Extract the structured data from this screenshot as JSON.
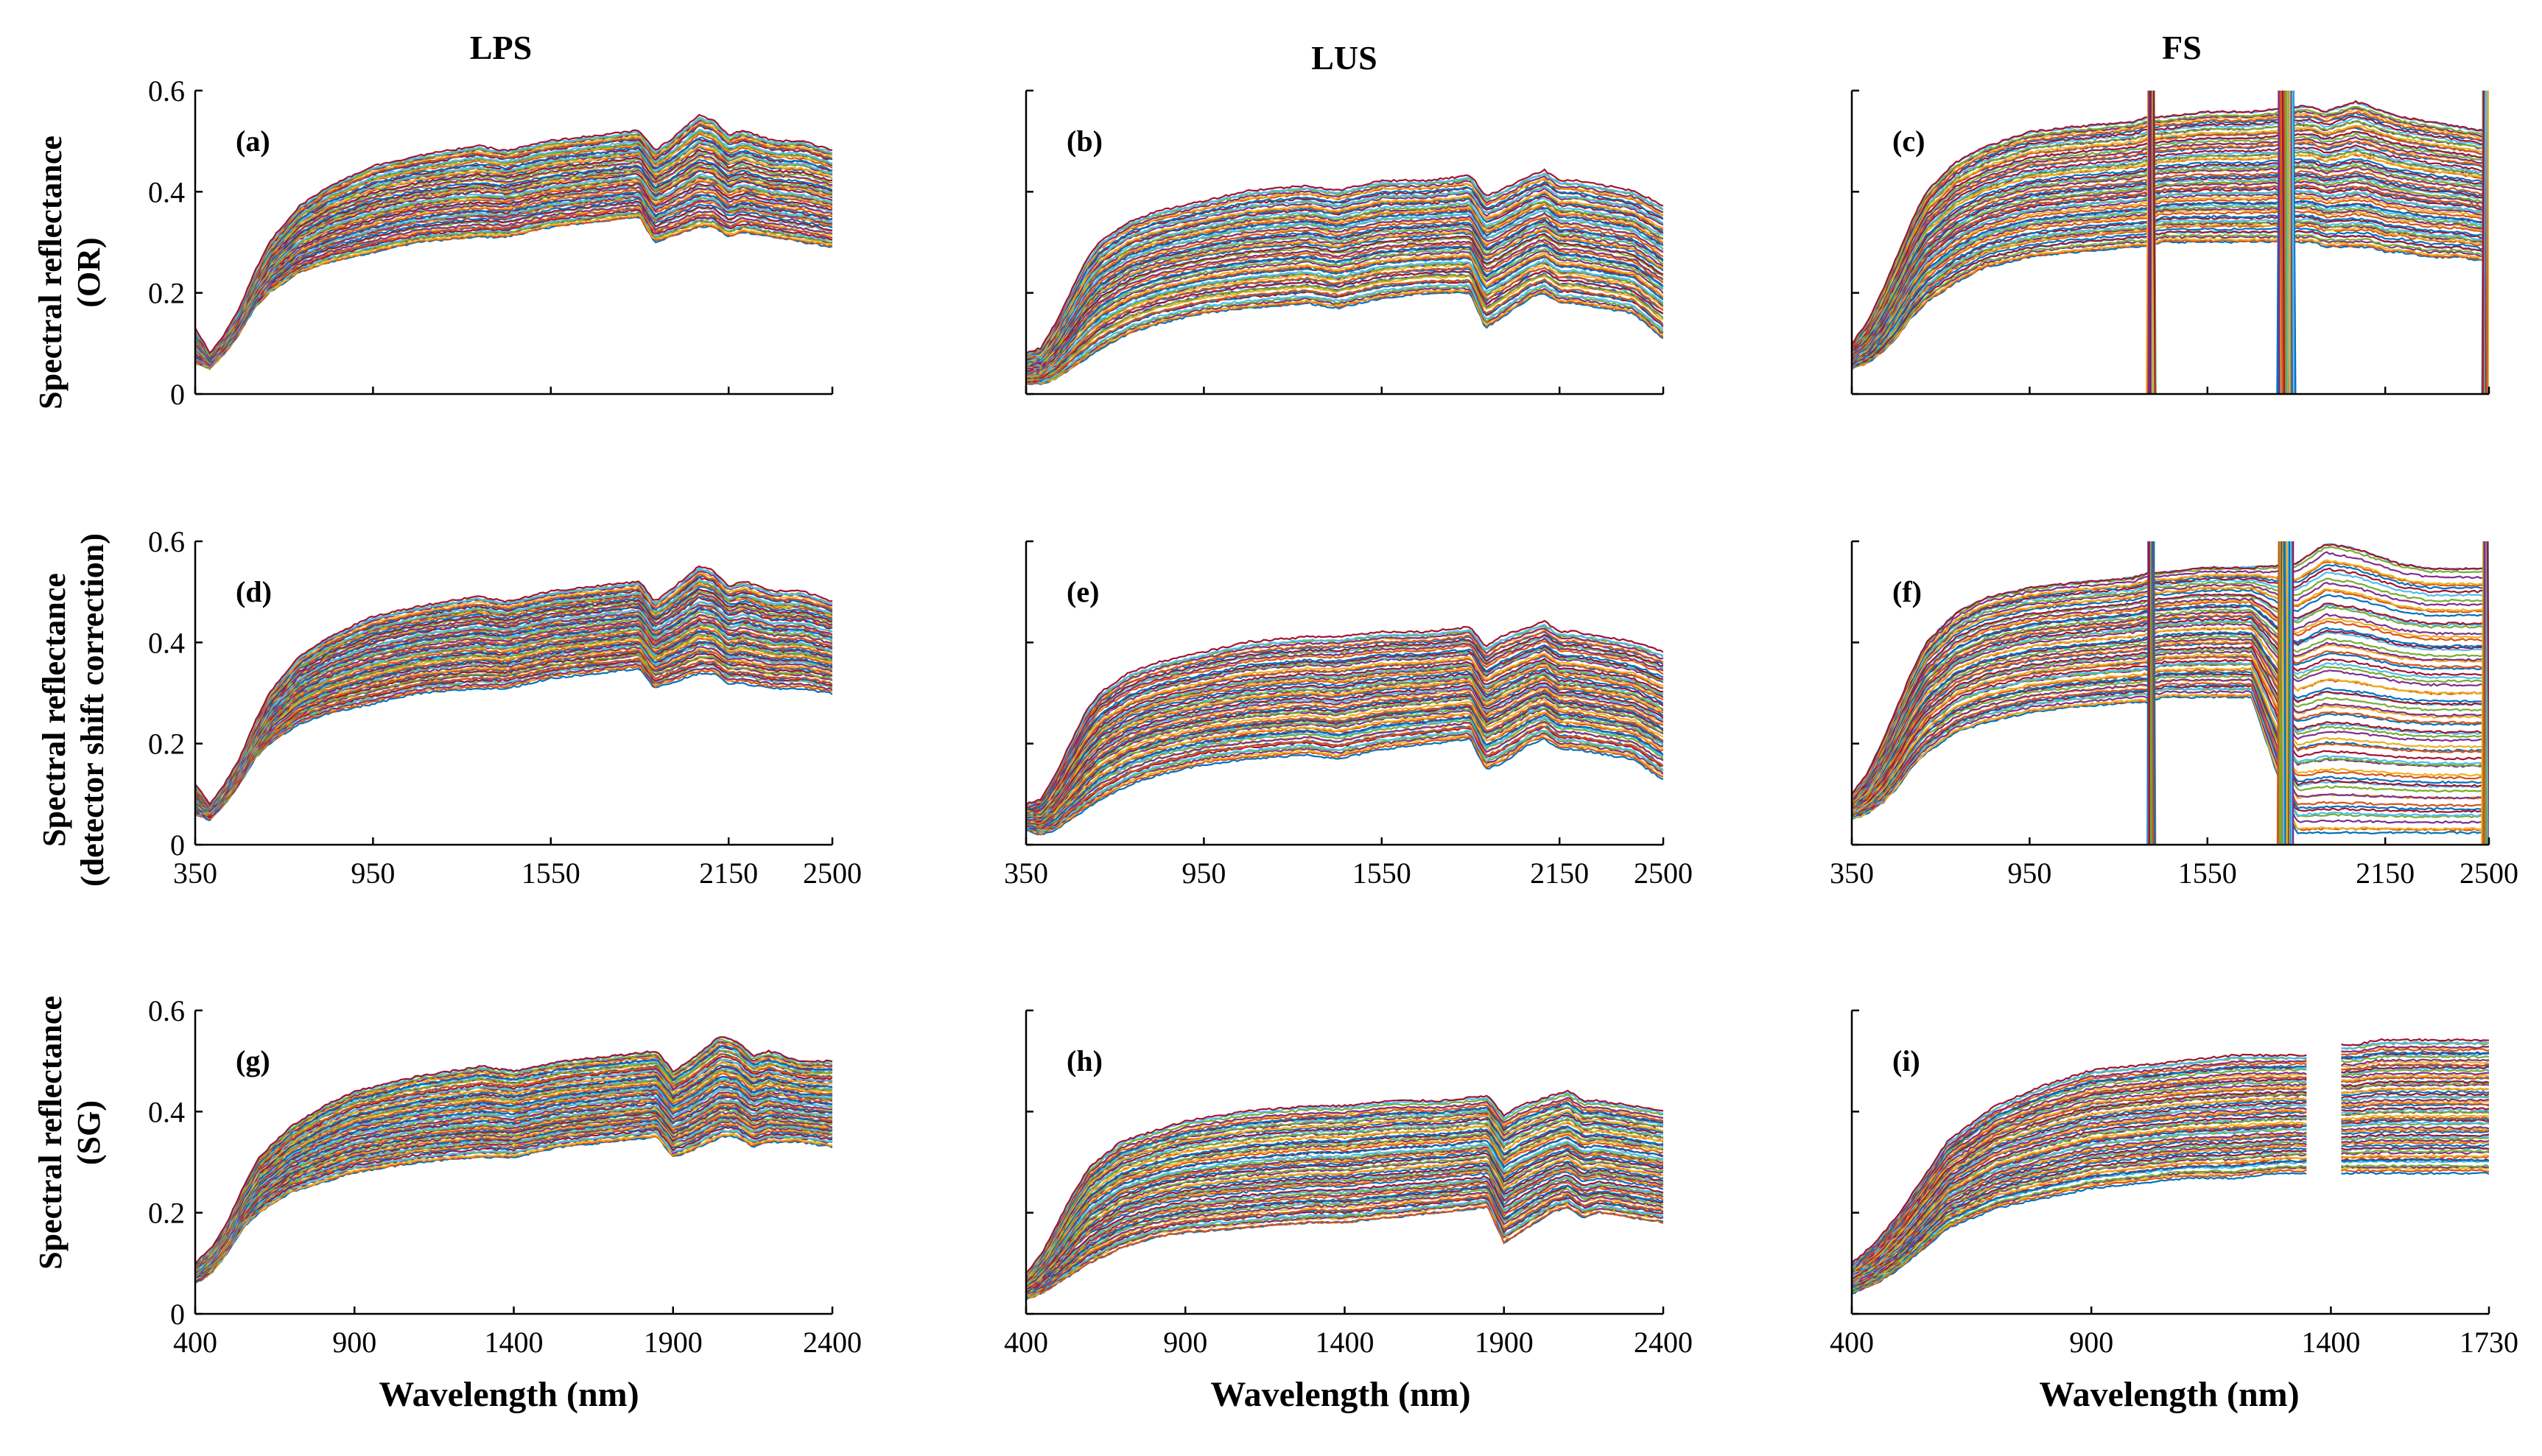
{
  "figure": {
    "columns": [
      "LPS",
      "LUS",
      "FS"
    ],
    "row_labels": [
      [
        "Spectral reflectance",
        "(OR)"
      ],
      [
        "Spectral reflectance",
        "(detector shift correction)"
      ],
      [
        "Spectral reflectance",
        "(SG)"
      ]
    ],
    "xlabel": "Wavelength (nm)"
  },
  "chart_data": [
    {
      "id": "a",
      "type": "line",
      "panel_label": "(a)",
      "xlim": [
        350,
        2500
      ],
      "ylim": [
        0,
        0.6
      ],
      "xticks": [
        350,
        950,
        1550,
        2150,
        2500
      ],
      "yticks": [
        0,
        0.2,
        0.4,
        0.6
      ],
      "show_xticklabels": false,
      "show_yticklabels": true,
      "x": [
        350,
        400,
        450,
        500,
        550,
        600,
        700,
        800,
        950,
        1100,
        1300,
        1400,
        1550,
        1700,
        1850,
        1900,
        1950,
        2050,
        2100,
        2150,
        2200,
        2300,
        2400,
        2500
      ],
      "series_min": [
        0.06,
        0.05,
        0.08,
        0.12,
        0.17,
        0.2,
        0.24,
        0.26,
        0.28,
        0.3,
        0.31,
        0.31,
        0.33,
        0.34,
        0.35,
        0.3,
        0.31,
        0.33,
        0.33,
        0.31,
        0.32,
        0.31,
        0.3,
        0.29
      ],
      "series_max": [
        0.13,
        0.08,
        0.12,
        0.17,
        0.24,
        0.3,
        0.37,
        0.41,
        0.45,
        0.47,
        0.49,
        0.48,
        0.5,
        0.51,
        0.52,
        0.48,
        0.5,
        0.55,
        0.54,
        0.51,
        0.52,
        0.5,
        0.5,
        0.48
      ],
      "noise_bands": []
    },
    {
      "id": "b",
      "type": "line",
      "panel_label": "(b)",
      "xlim": [
        350,
        2500
      ],
      "ylim": [
        0,
        0.6
      ],
      "xticks": [
        350,
        950,
        1550,
        2150,
        2500
      ],
      "yticks": [
        0,
        0.2,
        0.4,
        0.6
      ],
      "show_xticklabels": false,
      "show_yticklabels": false,
      "x": [
        350,
        400,
        450,
        500,
        550,
        600,
        700,
        800,
        950,
        1100,
        1300,
        1400,
        1550,
        1700,
        1850,
        1900,
        1950,
        2050,
        2100,
        2150,
        2200,
        2300,
        2400,
        2500
      ],
      "series_min": [
        0.02,
        0.02,
        0.03,
        0.05,
        0.07,
        0.09,
        0.12,
        0.14,
        0.16,
        0.17,
        0.18,
        0.17,
        0.19,
        0.2,
        0.2,
        0.13,
        0.15,
        0.19,
        0.2,
        0.18,
        0.18,
        0.17,
        0.16,
        0.11
      ],
      "series_max": [
        0.08,
        0.09,
        0.14,
        0.2,
        0.26,
        0.3,
        0.34,
        0.36,
        0.38,
        0.4,
        0.41,
        0.4,
        0.42,
        0.42,
        0.43,
        0.39,
        0.4,
        0.43,
        0.44,
        0.42,
        0.42,
        0.41,
        0.4,
        0.37
      ],
      "noise_bands": []
    },
    {
      "id": "c",
      "type": "line",
      "panel_label": "(c)",
      "xlim": [
        350,
        2500
      ],
      "ylim": [
        0,
        0.6
      ],
      "xticks": [
        350,
        950,
        1550,
        2150,
        2500
      ],
      "yticks": [
        0,
        0.2,
        0.4,
        0.6
      ],
      "show_xticklabels": false,
      "show_yticklabels": false,
      "x": [
        350,
        400,
        450,
        500,
        550,
        600,
        700,
        800,
        950,
        1100,
        1300,
        1350,
        1400,
        1550,
        1700,
        1850,
        1900,
        1950,
        2050,
        2100,
        2150,
        2200,
        2300,
        2400,
        2500
      ],
      "series_min": [
        0.05,
        0.06,
        0.08,
        0.11,
        0.15,
        0.18,
        0.22,
        0.25,
        0.27,
        0.28,
        0.29,
        0.29,
        0.3,
        0.3,
        0.3,
        0.3,
        0.3,
        0.29,
        0.29,
        0.29,
        0.28,
        0.28,
        0.27,
        0.27,
        0.26
      ],
      "series_max": [
        0.1,
        0.14,
        0.2,
        0.27,
        0.34,
        0.4,
        0.46,
        0.49,
        0.52,
        0.53,
        0.54,
        0.55,
        0.55,
        0.56,
        0.56,
        0.57,
        0.57,
        0.56,
        0.58,
        0.57,
        0.56,
        0.55,
        0.54,
        0.53,
        0.52
      ],
      "noise_bands": [
        [
          1350,
          1370
        ],
        [
          1790,
          1840
        ],
        [
          2480,
          2500
        ]
      ]
    },
    {
      "id": "d",
      "type": "line",
      "panel_label": "(d)",
      "xlim": [
        350,
        2500
      ],
      "ylim": [
        0,
        0.6
      ],
      "xticks": [
        350,
        950,
        1550,
        2150,
        2500
      ],
      "yticks": [
        0,
        0.2,
        0.4,
        0.6
      ],
      "show_xticklabels": true,
      "show_yticklabels": true,
      "x": [
        350,
        400,
        450,
        500,
        550,
        600,
        700,
        800,
        950,
        1100,
        1300,
        1400,
        1550,
        1700,
        1850,
        1900,
        1950,
        2050,
        2100,
        2150,
        2200,
        2300,
        2400,
        2500
      ],
      "series_min": [
        0.06,
        0.05,
        0.08,
        0.12,
        0.17,
        0.2,
        0.24,
        0.26,
        0.28,
        0.3,
        0.31,
        0.31,
        0.33,
        0.34,
        0.35,
        0.31,
        0.32,
        0.34,
        0.34,
        0.32,
        0.32,
        0.31,
        0.31,
        0.3
      ],
      "series_max": [
        0.12,
        0.08,
        0.12,
        0.17,
        0.24,
        0.3,
        0.37,
        0.41,
        0.45,
        0.47,
        0.49,
        0.48,
        0.5,
        0.51,
        0.52,
        0.48,
        0.5,
        0.55,
        0.54,
        0.51,
        0.52,
        0.5,
        0.5,
        0.48
      ],
      "noise_bands": []
    },
    {
      "id": "e",
      "type": "line",
      "panel_label": "(e)",
      "xlim": [
        350,
        2500
      ],
      "ylim": [
        0,
        0.6
      ],
      "xticks": [
        350,
        950,
        1550,
        2150,
        2500
      ],
      "yticks": [
        0,
        0.2,
        0.4,
        0.6
      ],
      "show_xticklabels": true,
      "show_yticklabels": false,
      "x": [
        350,
        400,
        450,
        500,
        550,
        600,
        700,
        800,
        950,
        1100,
        1300,
        1400,
        1550,
        1700,
        1850,
        1900,
        1950,
        2050,
        2100,
        2150,
        2200,
        2300,
        2400,
        2500
      ],
      "series_min": [
        0.03,
        0.02,
        0.03,
        0.05,
        0.07,
        0.09,
        0.12,
        0.14,
        0.16,
        0.17,
        0.18,
        0.17,
        0.19,
        0.2,
        0.21,
        0.15,
        0.16,
        0.2,
        0.21,
        0.19,
        0.19,
        0.18,
        0.17,
        0.13
      ],
      "series_max": [
        0.08,
        0.09,
        0.14,
        0.2,
        0.26,
        0.3,
        0.34,
        0.36,
        0.38,
        0.4,
        0.41,
        0.41,
        0.42,
        0.42,
        0.43,
        0.39,
        0.41,
        0.43,
        0.44,
        0.42,
        0.42,
        0.41,
        0.4,
        0.38
      ],
      "noise_bands": []
    },
    {
      "id": "f",
      "type": "line",
      "panel_label": "(f)",
      "xlim": [
        350,
        2500
      ],
      "ylim": [
        0,
        0.6
      ],
      "xticks": [
        350,
        950,
        1550,
        2150,
        2500
      ],
      "yticks": [
        0,
        0.2,
        0.4,
        0.6
      ],
      "show_xticklabels": true,
      "show_yticklabels": false,
      "x": [
        350,
        400,
        450,
        500,
        550,
        600,
        700,
        800,
        950,
        1100,
        1300,
        1350,
        1400,
        1550,
        1700,
        1850,
        1900,
        1950,
        2050,
        2100,
        2150,
        2200,
        2300,
        2400,
        2500
      ],
      "series_min": [
        0.05,
        0.06,
        0.08,
        0.11,
        0.15,
        0.18,
        0.22,
        0.24,
        0.26,
        0.27,
        0.28,
        0.28,
        0.29,
        0.29,
        0.29,
        0.02,
        0.02,
        0.02,
        0.02,
        0.02,
        0.02,
        0.02,
        0.02,
        0.02,
        0.02
      ],
      "series_max": [
        0.1,
        0.14,
        0.2,
        0.27,
        0.34,
        0.4,
        0.46,
        0.49,
        0.51,
        0.52,
        0.53,
        0.54,
        0.54,
        0.55,
        0.55,
        0.56,
        0.58,
        0.6,
        0.59,
        0.58,
        0.57,
        0.56,
        0.55,
        0.55,
        0.55
      ],
      "noise_bands": [
        [
          1350,
          1370
        ],
        [
          1790,
          1840
        ],
        [
          2480,
          2500
        ]
      ]
    },
    {
      "id": "g",
      "type": "line",
      "panel_label": "(g)",
      "xlim": [
        400,
        2400
      ],
      "ylim": [
        0,
        0.6
      ],
      "xticks": [
        400,
        900,
        1400,
        1900,
        2400
      ],
      "yticks": [
        0,
        0.2,
        0.4,
        0.6
      ],
      "show_xticklabels": true,
      "show_yticklabels": true,
      "x": [
        400,
        450,
        500,
        550,
        600,
        700,
        800,
        900,
        1100,
        1300,
        1400,
        1550,
        1700,
        1850,
        1900,
        1950,
        2050,
        2100,
        2150,
        2200,
        2300,
        2400
      ],
      "series_min": [
        0.06,
        0.08,
        0.12,
        0.17,
        0.2,
        0.24,
        0.26,
        0.28,
        0.3,
        0.31,
        0.31,
        0.33,
        0.34,
        0.35,
        0.31,
        0.32,
        0.35,
        0.35,
        0.33,
        0.34,
        0.34,
        0.33
      ],
      "series_max": [
        0.1,
        0.13,
        0.18,
        0.25,
        0.31,
        0.37,
        0.41,
        0.44,
        0.47,
        0.49,
        0.48,
        0.5,
        0.51,
        0.52,
        0.48,
        0.5,
        0.55,
        0.54,
        0.51,
        0.52,
        0.5,
        0.5
      ],
      "noise_bands": []
    },
    {
      "id": "h",
      "type": "line",
      "panel_label": "(h)",
      "xlim": [
        400,
        2400
      ],
      "ylim": [
        0,
        0.6
      ],
      "xticks": [
        400,
        900,
        1400,
        1900,
        2400
      ],
      "yticks": [
        0,
        0.2,
        0.4,
        0.6
      ],
      "show_xticklabels": true,
      "show_yticklabels": false,
      "x": [
        400,
        450,
        500,
        550,
        600,
        700,
        800,
        900,
        1100,
        1300,
        1400,
        1550,
        1700,
        1850,
        1900,
        1950,
        2050,
        2100,
        2150,
        2200,
        2300,
        2400
      ],
      "series_min": [
        0.03,
        0.04,
        0.06,
        0.08,
        0.1,
        0.13,
        0.15,
        0.16,
        0.17,
        0.18,
        0.18,
        0.19,
        0.2,
        0.21,
        0.14,
        0.16,
        0.2,
        0.21,
        0.19,
        0.2,
        0.19,
        0.18
      ],
      "series_max": [
        0.08,
        0.12,
        0.18,
        0.24,
        0.29,
        0.34,
        0.36,
        0.38,
        0.4,
        0.41,
        0.41,
        0.42,
        0.42,
        0.43,
        0.39,
        0.41,
        0.43,
        0.44,
        0.42,
        0.42,
        0.41,
        0.4
      ],
      "noise_bands": []
    },
    {
      "id": "i",
      "type": "line",
      "panel_label": "(i)",
      "xlim": [
        400,
        1730
      ],
      "ylim": [
        0,
        0.6
      ],
      "xticks": [
        400,
        900,
        1400,
        1730
      ],
      "yticks": [
        0,
        0.2,
        0.4,
        0.6
      ],
      "show_xticklabels": true,
      "show_yticklabels": false,
      "x": [
        400,
        450,
        500,
        550,
        600,
        700,
        800,
        900,
        1000,
        1100,
        1200,
        1300,
        1350,
        1420,
        1450,
        1500,
        1550,
        1600,
        1650,
        1700,
        1730
      ],
      "series_min": [
        0.04,
        0.06,
        0.09,
        0.13,
        0.17,
        0.21,
        0.23,
        0.25,
        0.26,
        0.27,
        0.27,
        0.28,
        0.28,
        0.28,
        0.28,
        0.28,
        0.28,
        0.28,
        0.28,
        0.28,
        0.28
      ],
      "series_max": [
        0.1,
        0.14,
        0.2,
        0.27,
        0.34,
        0.41,
        0.45,
        0.48,
        0.49,
        0.5,
        0.51,
        0.51,
        0.51,
        0.53,
        0.53,
        0.54,
        0.54,
        0.54,
        0.54,
        0.54,
        0.54
      ],
      "gap": [
        1350,
        1420
      ],
      "noise_bands": []
    }
  ],
  "style": {
    "palette": [
      "#0072BD",
      "#D95319",
      "#EDB120",
      "#7E2F8E",
      "#77AC30",
      "#4DBEEE",
      "#A2142F"
    ],
    "axis_color": "#000000",
    "lines_per_panel": 70
  }
}
